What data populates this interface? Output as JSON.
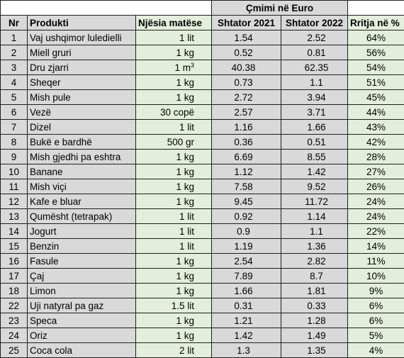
{
  "header": {
    "price_group": "Çmimi në Euro",
    "col_nr": "Nr",
    "col_product": "Produkti",
    "col_unit": "Njësia  matëse",
    "col_sep2021": "Shtator 2021",
    "col_sep2022": "Shtator 2022",
    "col_increase": "Rritja në %"
  },
  "rows": [
    {
      "nr": "1",
      "product": "Vaj ushqimor luledielli",
      "unit": "1 lit",
      "p2021": "1.54",
      "p2022": "2.52",
      "pct": "64%"
    },
    {
      "nr": "2",
      "product": "Miell gruri",
      "unit": "1 kg",
      "p2021": "0.52",
      "p2022": "0.81",
      "pct": "56%"
    },
    {
      "nr": "3",
      "product": "Dru zjarri",
      "unit": "1 m",
      "unit_sup": "3",
      "p2021": "40.38",
      "p2022": "62.35",
      "pct": "54%"
    },
    {
      "nr": "4",
      "product": "Sheqer",
      "unit": "1 kg",
      "p2021": "0.73",
      "p2022": "1.1",
      "pct": "51%"
    },
    {
      "nr": "5",
      "product": "Mish pule",
      "unit": "1 kg",
      "p2021": "2.72",
      "p2022": "3.94",
      "pct": "45%"
    },
    {
      "nr": "6",
      "product": "Vezë",
      "unit": "30 copë",
      "p2021": "2.57",
      "p2022": "3.71",
      "pct": "44%"
    },
    {
      "nr": "7",
      "product": "Dizel",
      "unit": "1 lit",
      "p2021": "1.16",
      "p2022": "1.66",
      "pct": "43%"
    },
    {
      "nr": "8",
      "product": "Bukë e bardhë",
      "unit": "500 gr",
      "p2021": "0.36",
      "p2022": "0.51",
      "pct": "42%"
    },
    {
      "nr": "9",
      "product": "Mish gjedhi pa eshtra",
      "unit": "1 kg",
      "p2021": "6.69",
      "p2022": "8.55",
      "pct": "28%"
    },
    {
      "nr": "10",
      "product": "Banane",
      "unit": "1 kg",
      "p2021": "1.12",
      "p2022": "1.42",
      "pct": "27%"
    },
    {
      "nr": "11",
      "product": "Mish viçi",
      "unit": "1 kg",
      "p2021": "7.58",
      "p2022": "9.52",
      "pct": "26%"
    },
    {
      "nr": "12",
      "product": "Kafe e bluar",
      "unit": "1 kg",
      "p2021": "9.45",
      "p2022": "11.72",
      "pct": "24%"
    },
    {
      "nr": "13",
      "product": "Qumësht (tetrapak)",
      "unit": "1 lit",
      "p2021": "0.92",
      "p2022": "1.14",
      "pct": "24%"
    },
    {
      "nr": "14",
      "product": "Jogurt",
      "unit": "1 lit",
      "p2021": "0.9",
      "p2022": "1.1",
      "pct": "22%"
    },
    {
      "nr": "15",
      "product": "Benzin",
      "unit": "1 lit",
      "p2021": "1.19",
      "p2022": "1.36",
      "pct": "14%"
    },
    {
      "nr": "16",
      "product": "Fasule",
      "unit": "1 kg",
      "p2021": "2.54",
      "p2022": "2.82",
      "pct": "11%"
    },
    {
      "nr": "17",
      "product": "Çaj",
      "unit": "1 kg",
      "p2021": "7.89",
      "p2022": "8.7",
      "pct": "10%"
    },
    {
      "nr": "18",
      "product": "Limon",
      "unit": "1 kg",
      "p2021": "1.66",
      "p2022": "1.81",
      "pct": "9%"
    },
    {
      "nr": "22",
      "product": "Uji natyral pa gaz",
      "unit": "1.5 lit",
      "p2021": "0.31",
      "p2022": "0.33",
      "pct": "6%"
    },
    {
      "nr": "23",
      "product": "Speca",
      "unit": "1 kg",
      "p2021": "1.21",
      "p2022": "1.28",
      "pct": "6%"
    },
    {
      "nr": "24",
      "product": "Oriz",
      "unit": "1 kg",
      "p2021": "1.42",
      "p2022": "1.49",
      "pct": "5%"
    },
    {
      "nr": "25",
      "product": "Coca cola",
      "unit": "2 lit",
      "p2021": "1.3",
      "p2022": "1.35",
      "pct": "4%"
    }
  ],
  "colors": {
    "grey_fill": "#d9d9d9",
    "green_fill": "#e2efda",
    "border": "#1f1f1f"
  }
}
